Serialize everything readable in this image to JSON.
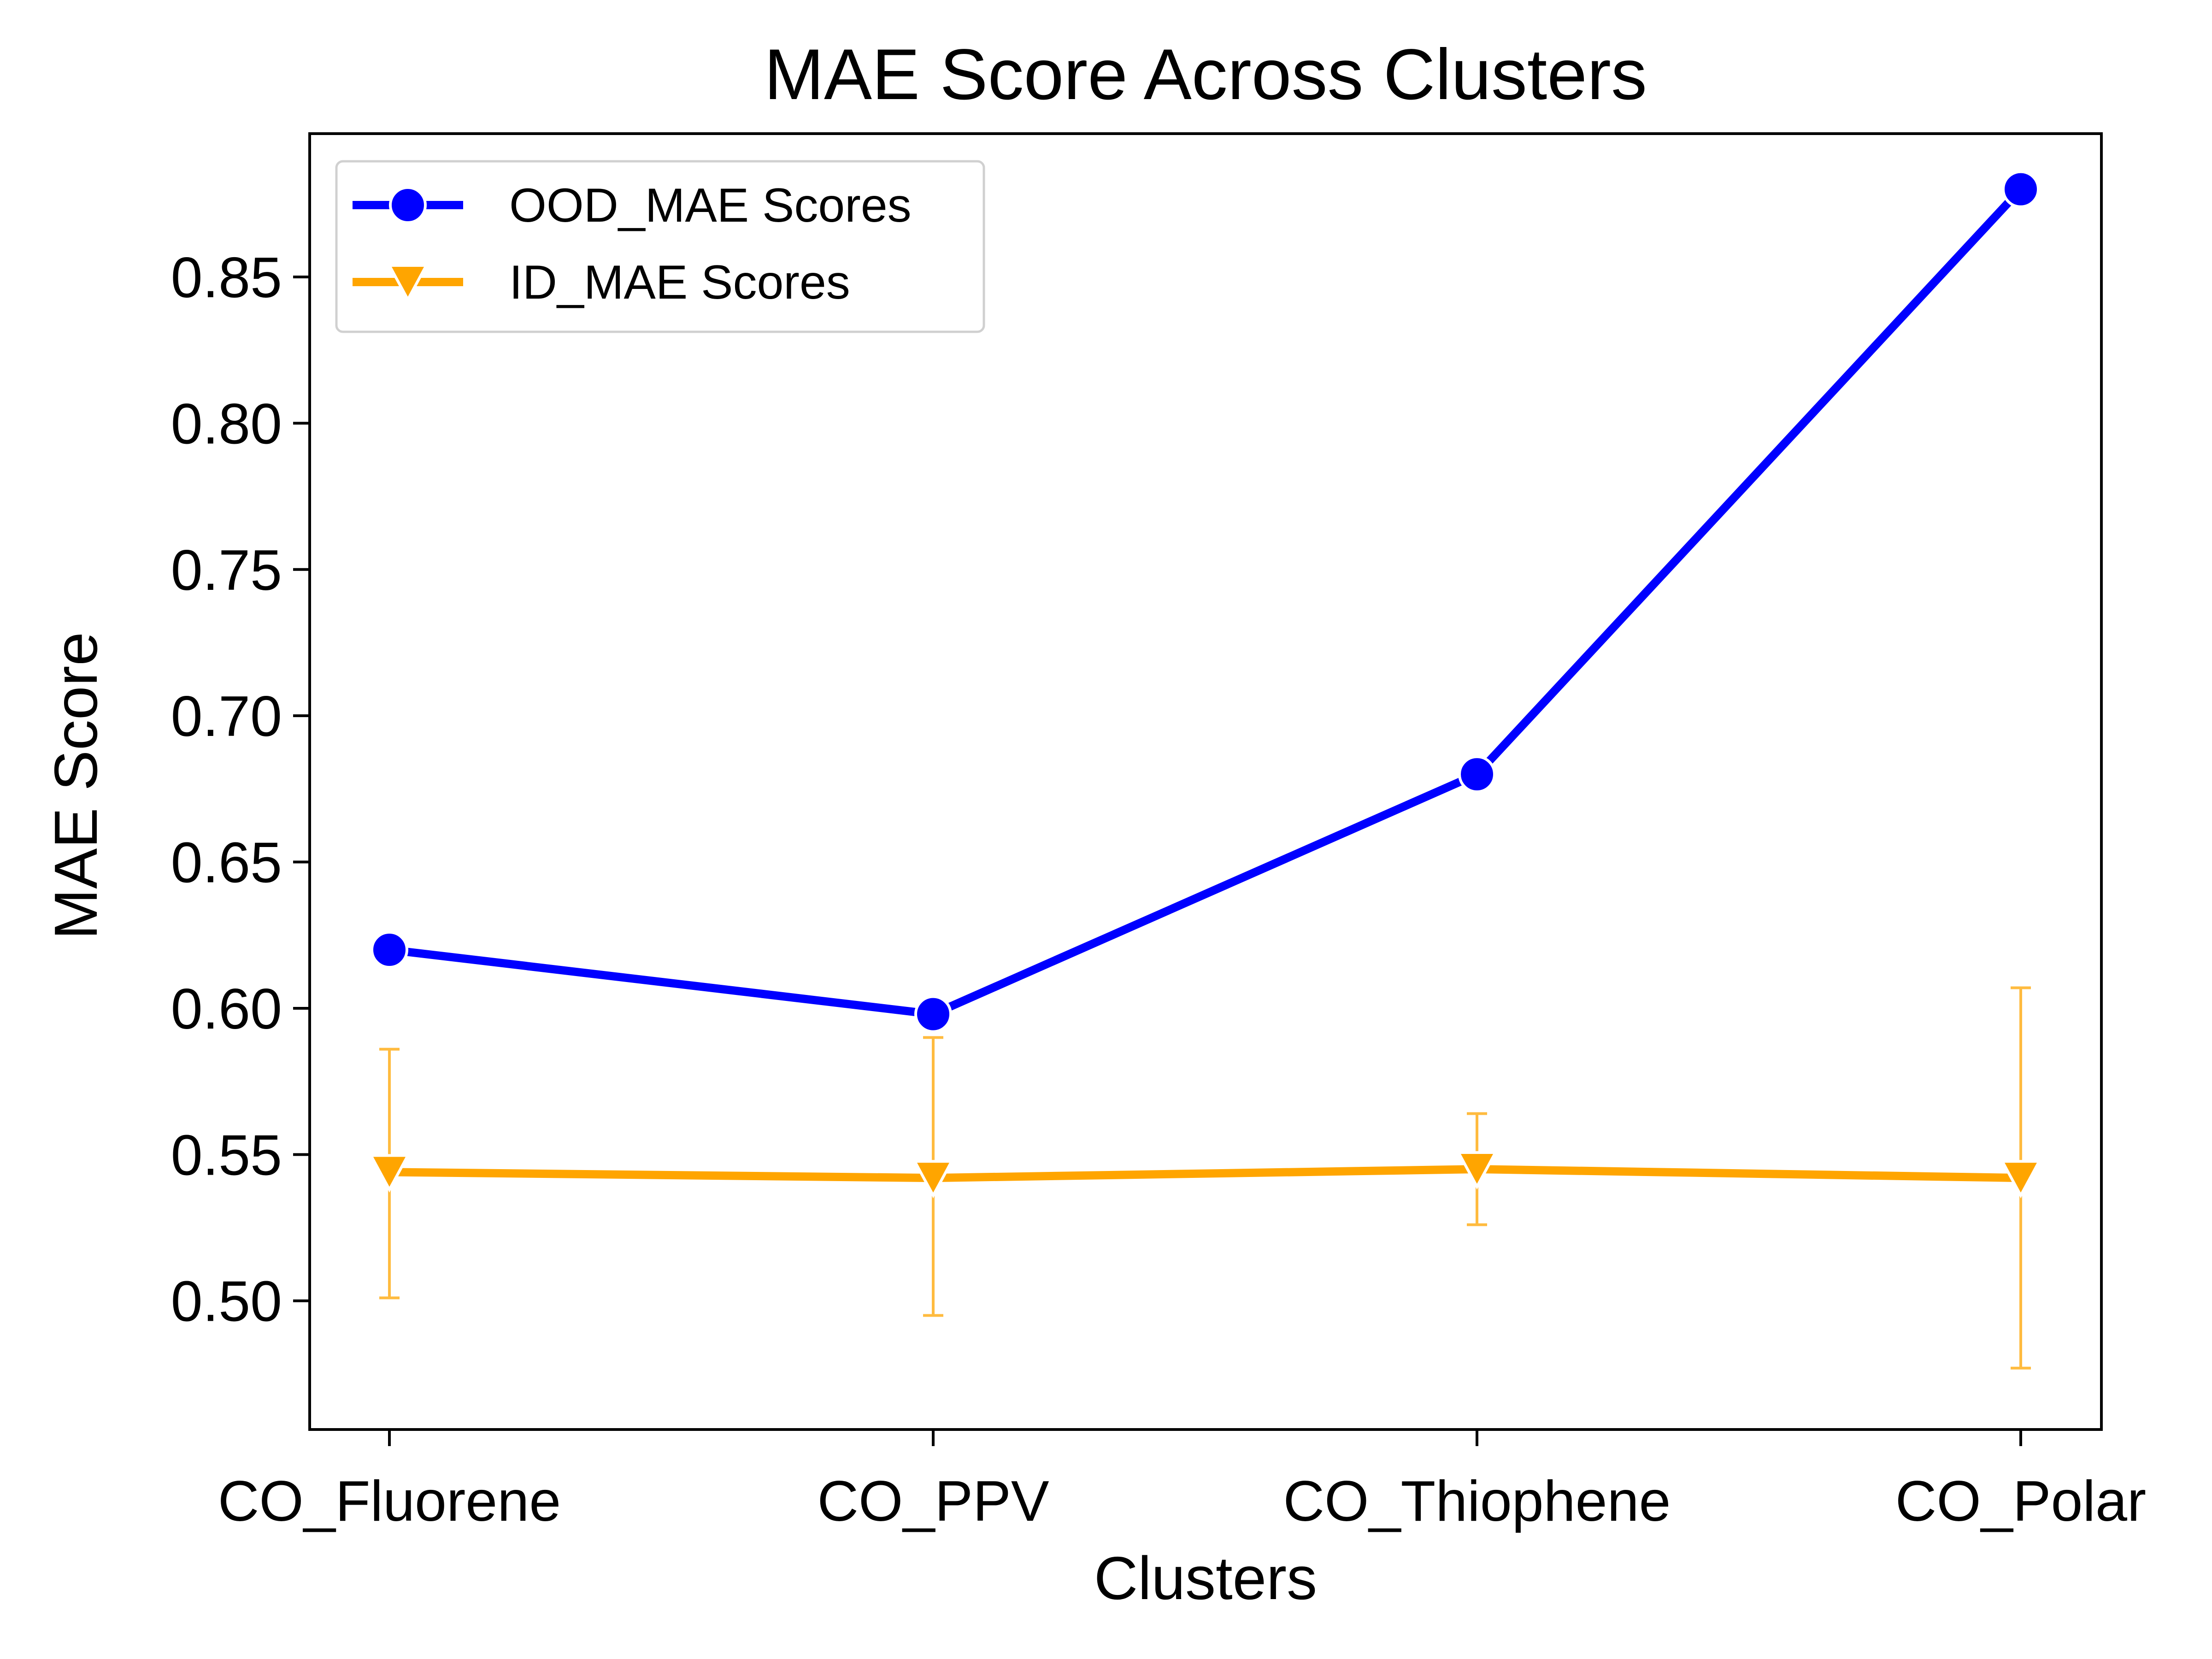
{
  "chart_data": {
    "type": "line",
    "title": "MAE Score Across Clusters",
    "xlabel": "Clusters",
    "ylabel": "MAE Score",
    "categories": [
      "CO_Fluorene",
      "CO_PPV",
      "CO_Thiophene",
      "CO_Polar"
    ],
    "ylim": [
      0.456,
      0.899
    ],
    "yticks": [
      0.5,
      0.55,
      0.6,
      0.65,
      0.7,
      0.75,
      0.8,
      0.85
    ],
    "ytick_labels": [
      "0.50",
      "0.55",
      "0.60",
      "0.65",
      "0.70",
      "0.75",
      "0.80",
      "0.85"
    ],
    "grid": false,
    "legend_position": "top-left",
    "series": [
      {
        "name": "OOD_MAE Scores",
        "color": "#0000ff",
        "marker": "circle",
        "values": [
          0.62,
          0.598,
          0.68,
          0.88
        ]
      },
      {
        "name": "ID_MAE Scores",
        "color": "#ffa500",
        "marker": "triangle-down",
        "values": [
          0.544,
          0.542,
          0.545,
          0.542
        ],
        "error_low": [
          0.501,
          0.495,
          0.526,
          0.477
        ],
        "error_high": [
          0.586,
          0.59,
          0.564,
          0.607
        ]
      }
    ]
  }
}
